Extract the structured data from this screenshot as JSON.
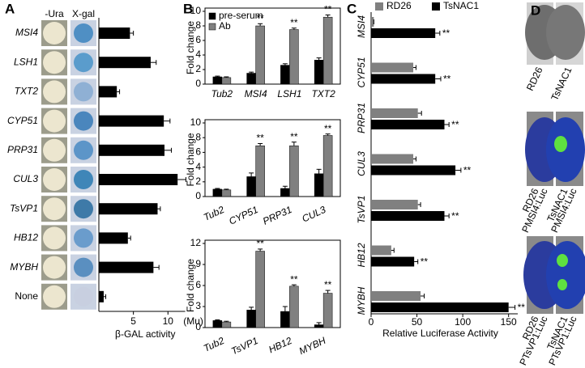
{
  "chart_data": [
    {
      "type": "bar",
      "orientation": "horizontal",
      "panel_label": "A",
      "column_headers": [
        "-Ura",
        "X-gal"
      ],
      "categories": [
        "MSI4",
        "LSH1",
        "TXT2",
        "CYP51",
        "PRP31",
        "CUL3",
        "TsVP1",
        "HB12",
        "MYBH",
        "None"
      ],
      "values": [
        4.5,
        7.5,
        2.6,
        9.4,
        9.5,
        11.4,
        8.5,
        4.2,
        7.9,
        0.7
      ],
      "errors": [
        0.5,
        0.8,
        0.4,
        0.9,
        1.0,
        1.2,
        0.4,
        0.4,
        0.8,
        0.3
      ],
      "color": "#000000",
      "xlim": [
        0,
        12.5
      ],
      "xticks": [
        5,
        10
      ],
      "unit_label": "(Mu)",
      "xlabel": "β-GAL activity"
    },
    {
      "type": "bar",
      "panel_label": "B",
      "ylabel": "Fold change",
      "legend": "upper left",
      "categories": [
        "Tub2",
        "MSI4",
        "LSH1",
        "TXT2"
      ],
      "series": [
        {
          "name": "pre-serum",
          "color": "#000000",
          "values": [
            1.0,
            1.5,
            2.6,
            3.3
          ],
          "errors": [
            0.1,
            0.15,
            0.2,
            0.3
          ]
        },
        {
          "name": "Ab",
          "color": "#808080",
          "values": [
            0.9,
            8.0,
            7.5,
            9.2
          ],
          "errors": [
            0.1,
            0.3,
            0.2,
            0.3
          ],
          "significance": [
            null,
            "**",
            "**",
            "**"
          ]
        }
      ],
      "ylim": [
        0,
        10
      ],
      "yticks": [
        0,
        2,
        4,
        6,
        8,
        10
      ]
    },
    {
      "type": "bar",
      "ylabel": "Fold change",
      "categories": [
        "Tub2",
        "CYP51",
        "PRP31",
        "CUL3"
      ],
      "series": [
        {
          "name": "pre-serum",
          "color": "#000000",
          "values": [
            1.0,
            2.7,
            1.1,
            3.1
          ],
          "errors": [
            0.1,
            0.5,
            0.3,
            0.6
          ]
        },
        {
          "name": "Ab",
          "color": "#808080",
          "values": [
            0.9,
            6.9,
            6.9,
            8.3
          ],
          "errors": [
            0.1,
            0.3,
            0.5,
            0.2
          ],
          "significance": [
            null,
            "**",
            "**",
            "**"
          ]
        }
      ],
      "ylim": [
        0,
        10
      ],
      "yticks": [
        0,
        2,
        4,
        6,
        8,
        10
      ]
    },
    {
      "type": "bar",
      "ylabel": "Fold change",
      "categories": [
        "Tub2",
        "TsVP1",
        "HB12",
        "MYBH"
      ],
      "series": [
        {
          "name": "pre-serum",
          "color": "#000000",
          "values": [
            1.0,
            2.5,
            2.3,
            0.4
          ],
          "errors": [
            0.1,
            0.4,
            0.7,
            0.3
          ]
        },
        {
          "name": "Ab",
          "color": "#808080",
          "values": [
            0.8,
            10.9,
            5.9,
            4.9
          ],
          "errors": [
            0.1,
            0.3,
            0.2,
            0.4
          ],
          "significance": [
            null,
            "**",
            "**",
            "**"
          ]
        }
      ],
      "ylim": [
        0,
        12
      ],
      "yticks": [
        0,
        3,
        6,
        9,
        12
      ]
    },
    {
      "type": "bar",
      "orientation": "horizontal",
      "panel_label": "C",
      "legend": "top",
      "categories": [
        "MSI4",
        "CYP51",
        "PRP31",
        "CUL3",
        "TsVP1",
        "HB12",
        "MYBH"
      ],
      "series": [
        {
          "name": "RD26",
          "color": "#808080",
          "values": [
            3,
            46,
            51,
            46,
            51,
            22,
            54
          ],
          "errors": [
            0,
            3,
            4,
            3,
            3,
            3,
            4
          ]
        },
        {
          "name": "TsNAC1",
          "color": "#000000",
          "values": [
            70,
            70,
            80,
            92,
            80,
            47,
            150
          ],
          "errors": [
            5,
            6,
            5,
            6,
            5,
            4,
            7
          ],
          "significance": [
            "**",
            "**",
            "**",
            "**",
            "**",
            "**",
            "**"
          ]
        }
      ],
      "xlim": [
        0,
        160
      ],
      "xticks": [
        0,
        50,
        100,
        150
      ],
      "xlabel": "Relative Luciferase Activity"
    }
  ],
  "panel_d": {
    "panel_label": "D",
    "top_labels": [
      "RD26",
      "TsNAC1"
    ],
    "middle_labels": [
      [
        "RD26",
        "PMSI4:Luc"
      ],
      [
        "TsNAC1",
        "PMSI4:Luc"
      ]
    ],
    "bottom_labels": [
      [
        "RD26",
        "PTsVP1:Luc"
      ],
      [
        "TsNAC1",
        "PTsVP1:Luc"
      ]
    ]
  }
}
